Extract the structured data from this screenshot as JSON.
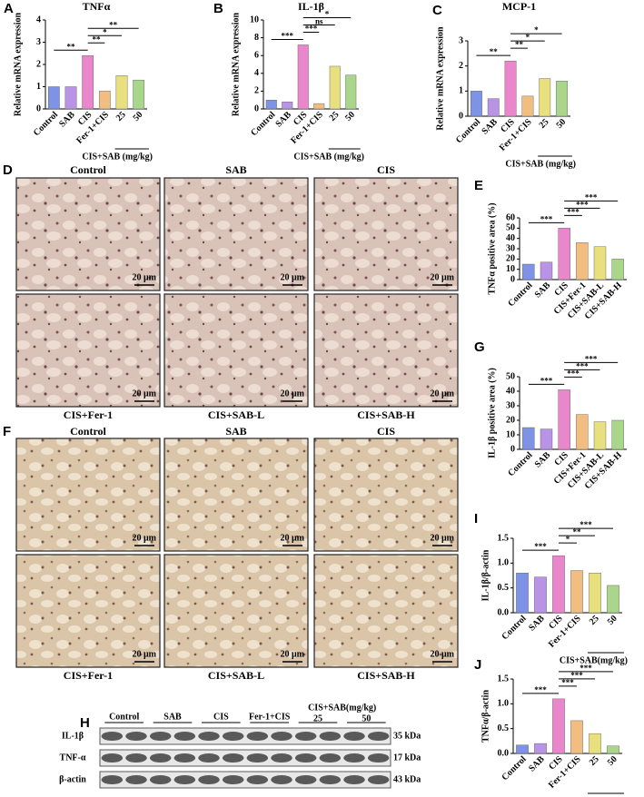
{
  "chart_data": [
    {
      "type": "bar",
      "panel": "A",
      "title": "TNFα",
      "ylabel": "Relative mRNA expression",
      "categories": [
        "Control",
        "SAB",
        "CIS",
        "Fer-1+CIS",
        "25",
        "50"
      ],
      "group_label": "CIS+SAB (mg/kg)",
      "values": [
        1.0,
        1.0,
        2.4,
        0.8,
        1.5,
        1.3
      ],
      "colors": [
        "#7f93e6",
        "#b893e6",
        "#ea86cc",
        "#f2bd80",
        "#e8e07e",
        "#a9d68a"
      ],
      "ylim": [
        0,
        4
      ],
      "yticks": [
        0,
        1,
        2,
        3,
        4
      ],
      "annotations": [
        {
          "text": "**",
          "pair": [
            "Control",
            "CIS"
          ]
        },
        {
          "text": "**",
          "pair": [
            "CIS",
            "Fer-1+CIS"
          ]
        },
        {
          "text": "*",
          "pair": [
            "CIS",
            "25"
          ]
        },
        {
          "text": "**",
          "pair": [
            "CIS",
            "50"
          ]
        }
      ]
    },
    {
      "type": "bar",
      "panel": "B",
      "title": "IL-1β",
      "ylabel": "Relative mRNA expression",
      "categories": [
        "Control",
        "SAB",
        "CIS",
        "Fer-1+CIS",
        "25",
        "50"
      ],
      "group_label": "CIS+SAB (mg/kg)",
      "values": [
        1.0,
        0.8,
        7.2,
        0.6,
        4.8,
        3.8
      ],
      "colors": [
        "#7f93e6",
        "#b893e6",
        "#ea86cc",
        "#f2bd80",
        "#e8e07e",
        "#a9d68a"
      ],
      "ylim": [
        0,
        10
      ],
      "yticks": [
        0,
        2,
        4,
        6,
        8,
        10
      ],
      "annotations": [
        {
          "text": "***",
          "pair": [
            "Control",
            "CIS"
          ]
        },
        {
          "text": "***",
          "pair": [
            "CIS",
            "Fer-1+CIS"
          ]
        },
        {
          "text": "ns",
          "pair": [
            "CIS",
            "25"
          ]
        },
        {
          "text": "*",
          "pair": [
            "CIS",
            "50"
          ]
        }
      ]
    },
    {
      "type": "bar",
      "panel": "C",
      "title": "MCP-1",
      "ylabel": "Relative mRNA expression",
      "categories": [
        "Control",
        "SAB",
        "CIS",
        "Fer-1+CIS",
        "25",
        "50"
      ],
      "group_label": "CIS+SAB (mg/kg)",
      "values": [
        1.0,
        0.7,
        2.2,
        0.8,
        1.5,
        1.4
      ],
      "colors": [
        "#7f93e6",
        "#b893e6",
        "#ea86cc",
        "#f2bd80",
        "#e8e07e",
        "#a9d68a"
      ],
      "ylim": [
        0,
        3
      ],
      "yticks": [
        0,
        1,
        2,
        3
      ],
      "annotations": [
        {
          "text": "**",
          "pair": [
            "Control",
            "CIS"
          ]
        },
        {
          "text": "**",
          "pair": [
            "CIS",
            "Fer-1+CIS"
          ]
        },
        {
          "text": "*",
          "pair": [
            "CIS",
            "25"
          ]
        },
        {
          "text": "*",
          "pair": [
            "CIS",
            "50"
          ]
        }
      ]
    },
    {
      "type": "bar",
      "panel": "E",
      "ylabel": "TNFα positive area (%)",
      "categories": [
        "Control",
        "SAB",
        "CIS",
        "CIS+Fer-1",
        "CIS+SAB-L",
        "CIS+SAB-H"
      ],
      "values": [
        15,
        17,
        50,
        36,
        32,
        20
      ],
      "colors": [
        "#7f93e6",
        "#b893e6",
        "#ea86cc",
        "#f2bd80",
        "#e8e07e",
        "#a9d68a"
      ],
      "ylim": [
        0,
        60
      ],
      "yticks": [
        0,
        10,
        20,
        30,
        40,
        50,
        60
      ],
      "annotations": [
        {
          "text": "***",
          "pair": [
            "Control",
            "CIS"
          ]
        },
        {
          "text": "***",
          "pair": [
            "CIS",
            "CIS+Fer-1"
          ]
        },
        {
          "text": "***",
          "pair": [
            "CIS",
            "CIS+SAB-L"
          ]
        },
        {
          "text": "***",
          "pair": [
            "CIS",
            "CIS+SAB-H"
          ]
        }
      ]
    },
    {
      "type": "bar",
      "panel": "G",
      "ylabel": "IL-1β positive area (%)",
      "categories": [
        "Control",
        "SAB",
        "CIS",
        "CIS+Fer-1",
        "CIS+SAB-L",
        "CIS+SAB-H"
      ],
      "values": [
        15,
        14,
        41,
        24,
        19,
        20
      ],
      "colors": [
        "#7f93e6",
        "#b893e6",
        "#ea86cc",
        "#f2bd80",
        "#e8e07e",
        "#a9d68a"
      ],
      "ylim": [
        0,
        50
      ],
      "yticks": [
        0,
        10,
        20,
        30,
        40,
        50
      ],
      "annotations": [
        {
          "text": "***",
          "pair": [
            "Control",
            "CIS"
          ]
        },
        {
          "text": "***",
          "pair": [
            "CIS",
            "CIS+Fer-1"
          ]
        },
        {
          "text": "***",
          "pair": [
            "CIS",
            "CIS+SAB-L"
          ]
        },
        {
          "text": "***",
          "pair": [
            "CIS",
            "CIS+SAB-H"
          ]
        }
      ]
    },
    {
      "type": "bar",
      "panel": "I",
      "ylabel": "IL-1β/β-actin",
      "categories": [
        "Control",
        "SAB",
        "CIS",
        "Fer-1+CIS",
        "25",
        "50"
      ],
      "group_label": "CIS+SAB(mg/kg)",
      "values": [
        0.8,
        0.72,
        1.15,
        0.85,
        0.8,
        0.55
      ],
      "colors": [
        "#7f93e6",
        "#b893e6",
        "#ea86cc",
        "#f2bd80",
        "#e8e07e",
        "#a9d68a"
      ],
      "ylim": [
        0,
        1.5
      ],
      "yticks": [
        {
          "value": 0,
          "label": "0.0"
        },
        0.5,
        {
          "value": 1,
          "label": "1.0"
        },
        1.5
      ],
      "annotations": [
        {
          "text": "***",
          "pair": [
            "Control",
            "CIS"
          ]
        },
        {
          "text": "*",
          "pair": [
            "CIS",
            "Fer-1+CIS"
          ]
        },
        {
          "text": "**",
          "pair": [
            "CIS",
            "25"
          ]
        },
        {
          "text": "***",
          "pair": [
            "CIS",
            "50"
          ]
        }
      ]
    },
    {
      "type": "bar",
      "panel": "J",
      "ylabel": "TNFα/β-actin",
      "categories": [
        "Control",
        "SAB",
        "CIS",
        "Fer-1+CIS",
        "25",
        "50"
      ],
      "group_label": "CIS+SAB(mg/kg)",
      "values": [
        0.17,
        0.2,
        1.1,
        0.66,
        0.4,
        0.15
      ],
      "colors": [
        "#7f93e6",
        "#b893e6",
        "#ea86cc",
        "#f2bd80",
        "#e8e07e",
        "#a9d68a"
      ],
      "ylim": [
        0,
        1.5
      ],
      "yticks": [
        {
          "value": 0,
          "label": "0.0"
        },
        0.5,
        {
          "value": 1,
          "label": "1.0"
        },
        1.5
      ],
      "annotations": [
        {
          "text": "***",
          "pair": [
            "Control",
            "CIS"
          ]
        },
        {
          "text": "***",
          "pair": [
            "CIS",
            "Fer-1+CIS"
          ]
        },
        {
          "text": "***",
          "pair": [
            "CIS",
            "25"
          ]
        },
        {
          "text": "***",
          "pair": [
            "CIS",
            "50"
          ]
        }
      ]
    }
  ],
  "histology": [
    {
      "panel": "D",
      "top": [
        "Control",
        "SAB",
        "CIS"
      ],
      "bottom": [
        "CIS+Fer-1",
        "CIS+SAB-L",
        "CIS+SAB-H"
      ],
      "scale_bar": "20 μm"
    },
    {
      "panel": "F",
      "top": [
        "Control",
        "SAB",
        "CIS"
      ],
      "bottom": [
        "CIS+Fer-1",
        "CIS+SAB-L",
        "CIS+SAB-H"
      ],
      "scale_bar": "20 μm"
    }
  ],
  "blot": {
    "panel": "H",
    "lanes": [
      "Control",
      "SAB",
      "CIS",
      "Fer-1+CIS",
      "25",
      "50"
    ],
    "group_label": "CIS+SAB(mg/kg)",
    "rows": [
      "IL-1β",
      "TNF-α",
      "β-actin"
    ],
    "sizes": [
      "35 kDa",
      "17 kDa",
      "43 kDa"
    ]
  }
}
